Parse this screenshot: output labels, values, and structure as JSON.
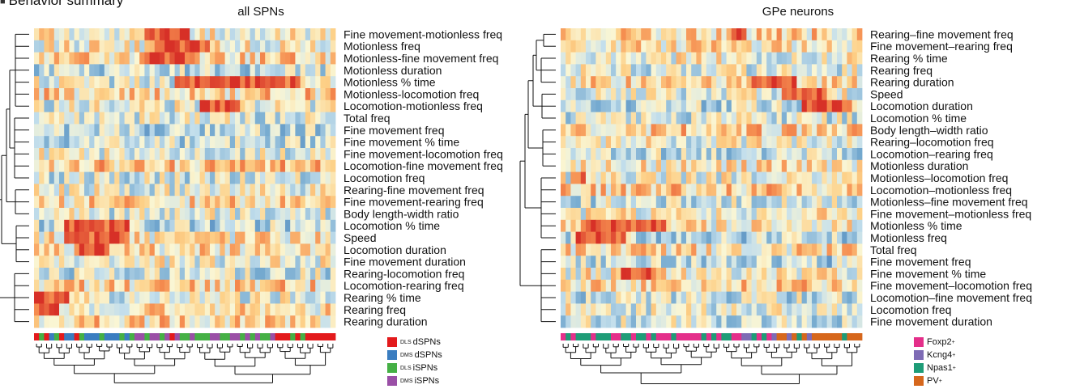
{
  "section_title": "Behavior summary",
  "chart_data": [
    {
      "type": "heatmap",
      "title": "all SPNs",
      "n_columns": 60,
      "rows": [
        "Fine movement-motionless freq",
        "Motionless freq",
        "Motionless-fine movement freq",
        "Motionless duration",
        "Motionless % time",
        "Motionless-locomotion freq",
        "Locomotion-motionless freq",
        "Total freq",
        "Fine movement  freq",
        "Fine movement % time",
        "Fine movement-locomotion freq",
        "Locomotion-fine movement freq",
        "Locomotion freq",
        "Rearing-fine movement freq",
        "Fine movement-rearing freq",
        "Body length-width ratio",
        "Locomotion % time",
        "Speed",
        "Locomotion duration",
        "Fine movement  duration",
        "Rearing-locomotion freq",
        "Locomotion-rearing freq",
        "Rearing % time",
        "Rearing freq",
        "Rearing duration"
      ],
      "row_groups": [
        [
          0,
          1,
          2,
          3,
          4,
          5,
          6
        ],
        [
          7,
          8,
          9,
          10,
          11,
          12
        ],
        [
          13,
          14,
          15
        ],
        [
          16,
          17,
          18,
          19
        ],
        [
          20,
          21,
          22,
          23,
          24
        ]
      ],
      "hot_cells": [
        {
          "row": 0,
          "cols": [
            22,
            30
          ]
        },
        {
          "row": 1,
          "cols": [
            24,
            34
          ]
        },
        {
          "row": 2,
          "cols": [
            22,
            30
          ]
        },
        {
          "row": 4,
          "cols": [
            28,
            52
          ]
        },
        {
          "row": 6,
          "cols": [
            33,
            40
          ]
        },
        {
          "row": 16,
          "cols": [
            6,
            18
          ]
        },
        {
          "row": 17,
          "cols": [
            6,
            18
          ]
        },
        {
          "row": 18,
          "cols": [
            8,
            14
          ]
        },
        {
          "row": 22,
          "cols": [
            0,
            6
          ]
        },
        {
          "row": 23,
          "cols": [
            0,
            4
          ]
        }
      ],
      "column_groups": [
        "DLS dSPNs",
        "DMS dSPNs",
        "DLS iSPNs",
        "DMS iSPNs"
      ],
      "column_annotation": [
        0,
        2,
        0,
        1,
        2,
        0,
        1,
        1,
        0,
        2,
        1,
        1,
        1,
        2,
        1,
        1,
        1,
        2,
        1,
        2,
        3,
        3,
        2,
        3,
        3,
        2,
        3,
        0,
        3,
        2,
        2,
        3,
        2,
        2,
        2,
        3,
        3,
        2,
        2,
        3,
        3,
        2,
        3,
        2,
        3,
        2,
        2,
        3,
        0,
        0,
        0,
        2,
        0,
        2,
        0,
        0,
        0,
        0,
        0,
        0
      ],
      "legend": [
        {
          "prefix": "DLS",
          "label": "dSPNs",
          "color": "#e31a1c"
        },
        {
          "prefix": "DMS",
          "label": "dSPNs",
          "color": "#3a7dc0"
        },
        {
          "prefix": "DLS",
          "label": "iSPNs",
          "color": "#45b045"
        },
        {
          "prefix": "DMS",
          "label": "iSPNs",
          "color": "#9a4fa6"
        }
      ]
    },
    {
      "type": "heatmap",
      "title": "GPe neurons",
      "n_columns": 60,
      "rows": [
        "Rearing–fine movement freq",
        "Fine movement–rearing freq",
        "Rearing % time",
        "Rearing freq",
        "Rearing duration",
        "Speed",
        "Locomotion duration",
        "Locomotion % time",
        "Body length–width ratio",
        "Rearing–locomotion freq",
        "Locomotion–rearing freq",
        "Motionless duration",
        "Motionless–locomotion freq",
        "Locomotion–motionless freq",
        "Motionless–fine movement freq",
        "Fine movement–motionless freq",
        "Motionless % time",
        "Motionless freq",
        "Total freq",
        "Fine movement freq",
        "Fine movement % time",
        "Fine movement–locomotion freq",
        "Locomotion–fine movement freq",
        "Locomotion freq",
        "Fine movement duration"
      ],
      "row_groups": [
        [
          0,
          1
        ],
        [
          2,
          3,
          4
        ],
        [
          5,
          6,
          7
        ],
        [
          8,
          9,
          10,
          11
        ],
        [
          12,
          13,
          14,
          15,
          16,
          17
        ],
        [
          18,
          19,
          20,
          21,
          22,
          23,
          24
        ]
      ],
      "hot_cells": [
        {
          "row": 0,
          "cols": [
            34,
            36
          ]
        },
        {
          "row": 4,
          "cols": [
            38,
            46
          ]
        },
        {
          "row": 5,
          "cols": [
            44,
            52
          ]
        },
        {
          "row": 6,
          "cols": [
            48,
            57
          ]
        },
        {
          "row": 12,
          "cols": [
            2,
            4
          ]
        },
        {
          "row": 16,
          "cols": [
            4,
            20
          ]
        },
        {
          "row": 17,
          "cols": [
            3,
            12
          ]
        },
        {
          "row": 20,
          "cols": [
            12,
            18
          ]
        }
      ],
      "column_groups": [
        "Foxp2+",
        "Kcng4+",
        "Npas1+",
        "PV+"
      ],
      "column_annotation": [
        0,
        2,
        0,
        2,
        2,
        2,
        0,
        2,
        2,
        2,
        0,
        0,
        2,
        2,
        0,
        2,
        2,
        0,
        2,
        0,
        0,
        0,
        2,
        0,
        0,
        0,
        0,
        0,
        2,
        0,
        2,
        0,
        2,
        2,
        0,
        0,
        1,
        1,
        2,
        0,
        2,
        0,
        1,
        3,
        3,
        1,
        3,
        2,
        3,
        1,
        3,
        3,
        3,
        3,
        3,
        3,
        2,
        3,
        3,
        3
      ],
      "legend": [
        {
          "label": "Foxp2",
          "sup": "+",
          "color": "#e42f8a"
        },
        {
          "label": "Kcng4",
          "sup": "+",
          "color": "#7e6bb5"
        },
        {
          "label": "Npas1",
          "sup": "+",
          "color": "#1e9c77"
        },
        {
          "label": "PV",
          "sup": "+",
          "color": "#d6671c"
        }
      ]
    }
  ]
}
